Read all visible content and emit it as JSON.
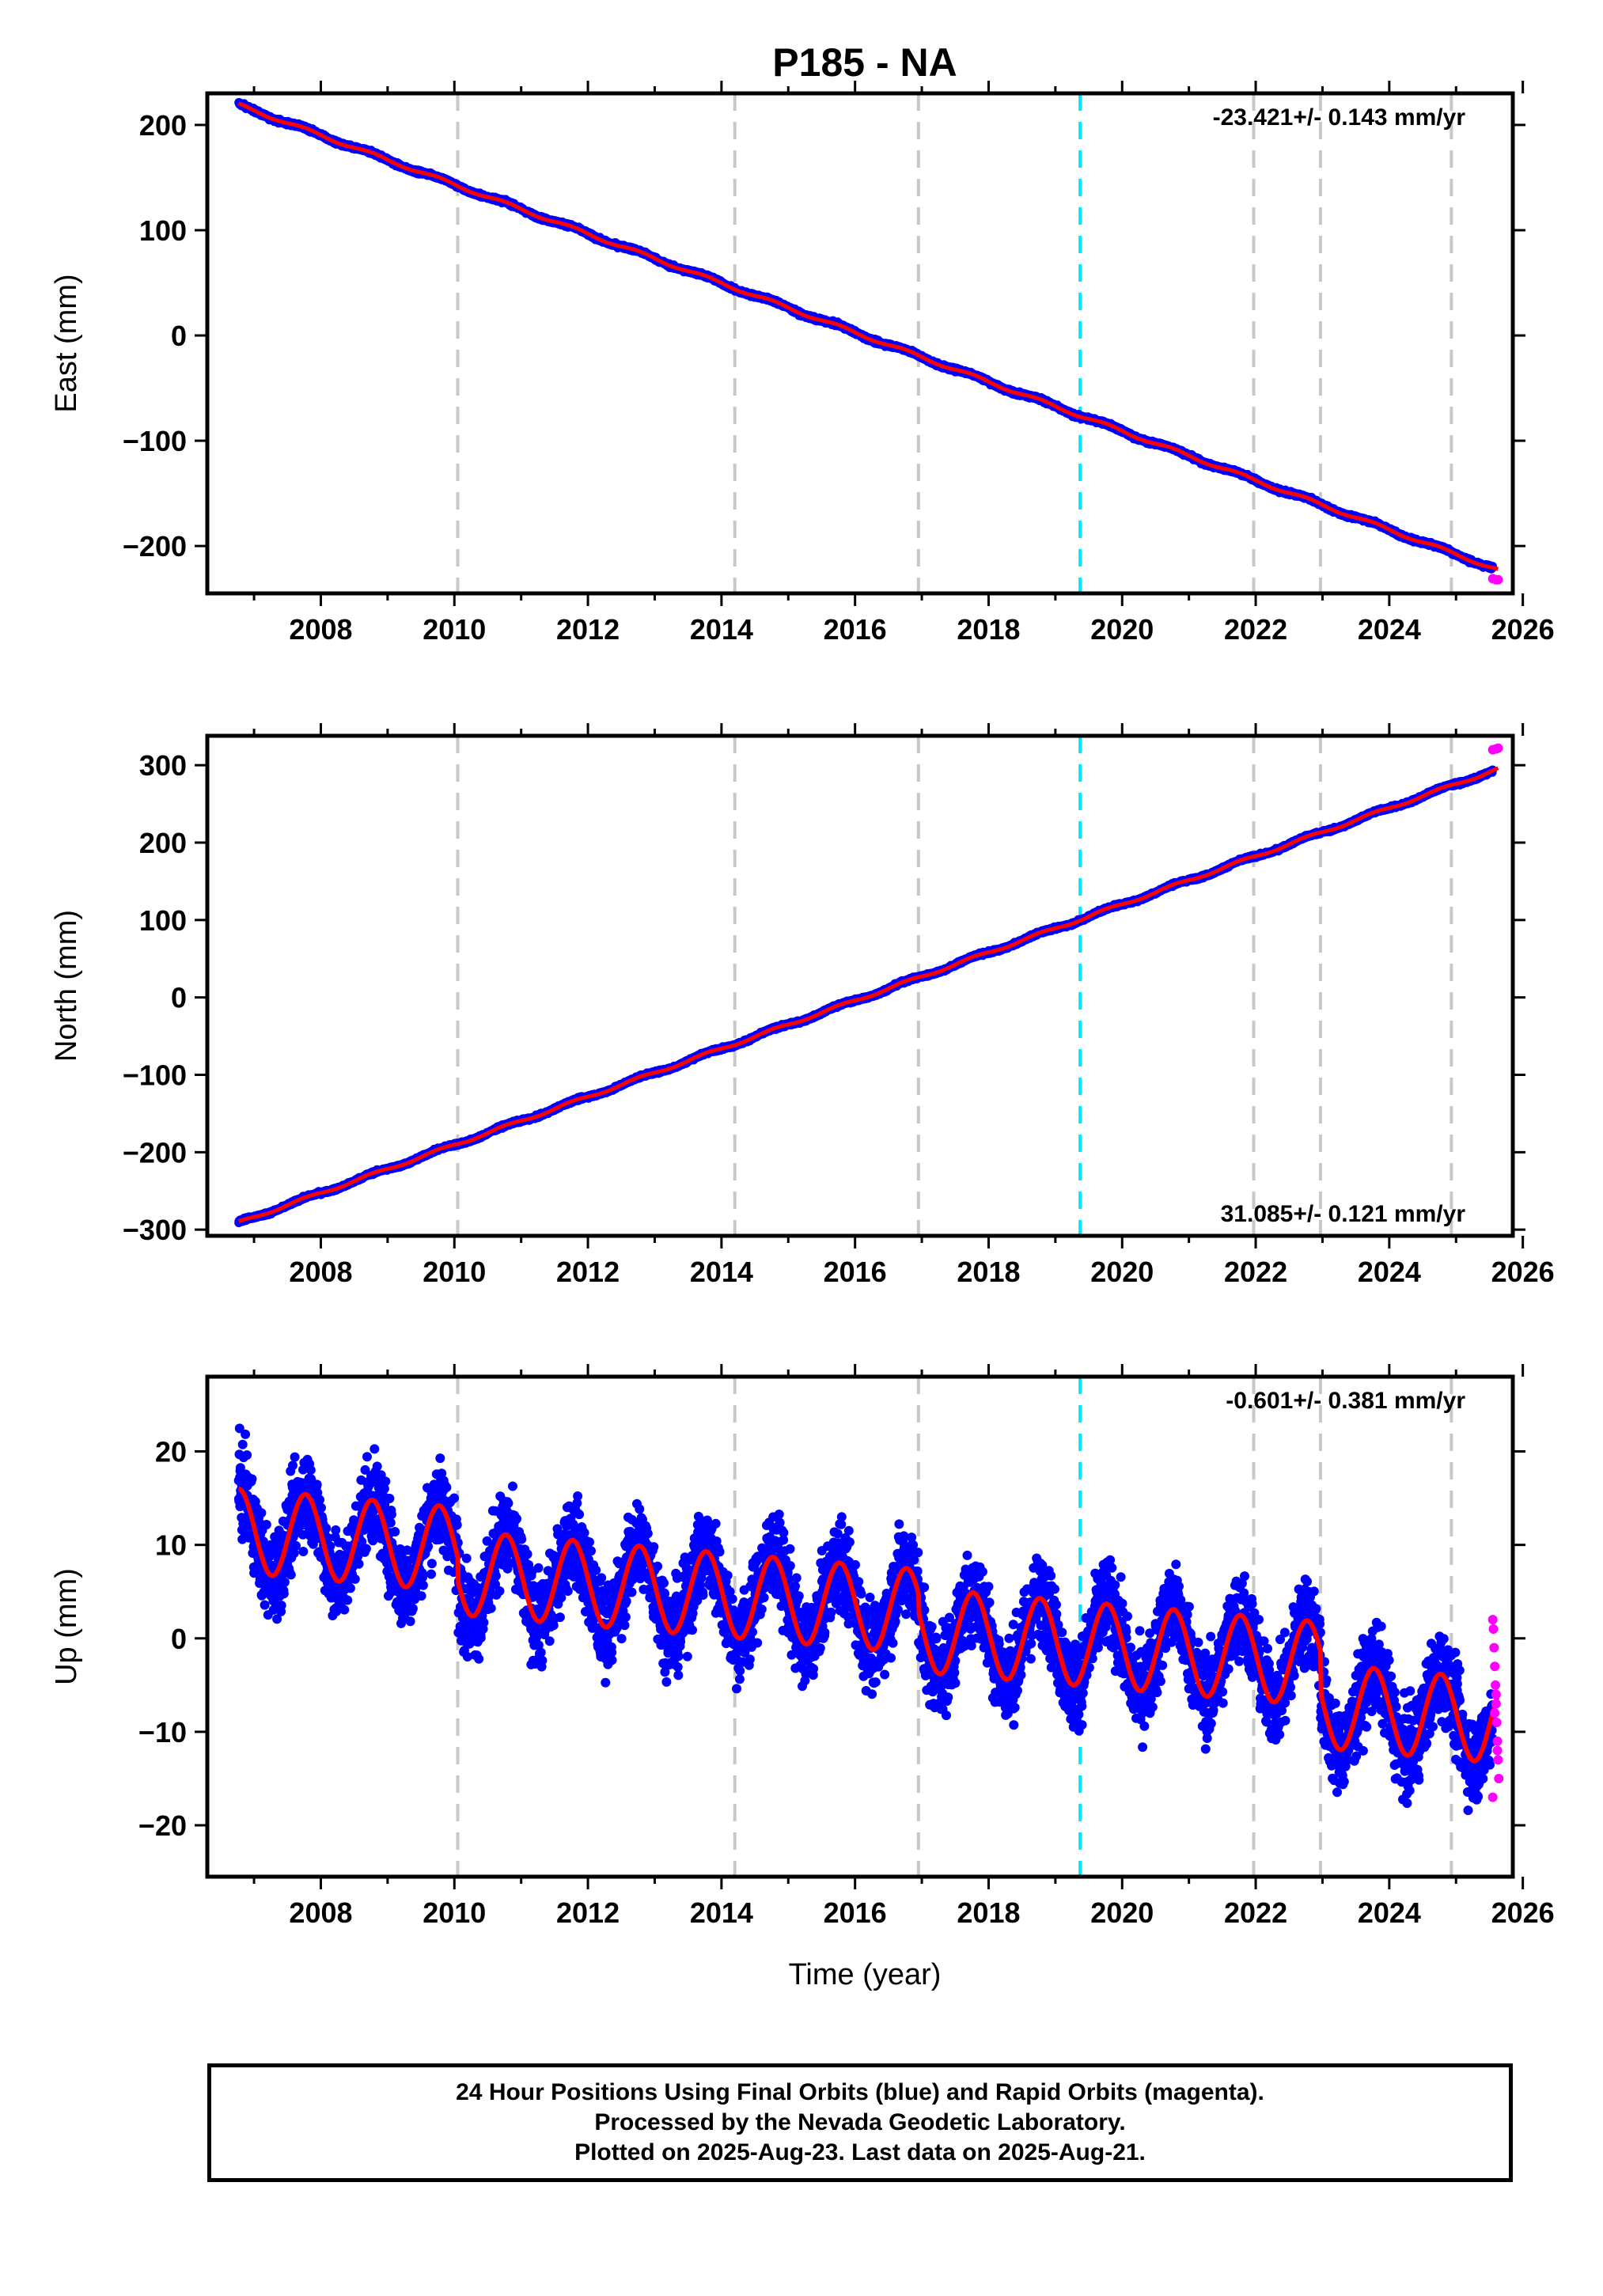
{
  "figure": {
    "title": "P185 - NA",
    "xlabel": "Time (year)",
    "caption": [
      "24 Hour Positions Using Final Orbits (blue) and Rapid Orbits (magenta).",
      "Processed by the Nevada Geodetic Laboratory.",
      "Plotted on 2025-Aug-23. Last data on 2025-Aug-21."
    ]
  },
  "colors": {
    "final_orbits": "#0000ff",
    "rapid_orbits": "#ff00ff",
    "model_fit": "#ff0000",
    "equipment_change": "#00e8ff",
    "gray_event": "#c8c8c8",
    "frame": "#000000"
  },
  "chart_data": [
    {
      "type": "scatter",
      "panel": "east",
      "ylabel": "East (mm)",
      "rate_label": "-23.421+/- 0.143 mm/yr",
      "rate_position": "top-right",
      "xlim": [
        2006.3,
        2025.85
      ],
      "ylim": [
        -245,
        230
      ],
      "xticks": [
        2008,
        2010,
        2012,
        2014,
        2016,
        2018,
        2020,
        2022,
        2024,
        2026
      ],
      "xtick_labels": [
        "2008",
        "2010",
        "2012",
        "2014",
        "2016",
        "2018",
        "2020",
        "2022",
        "2024",
        "2026"
      ],
      "yticks": [
        -200,
        -100,
        0,
        100,
        200
      ],
      "ytick_labels": [
        "−200",
        "−100",
        "0",
        "100",
        "200"
      ],
      "gray_event_lines": [
        2010.05,
        2014.2,
        2016.95,
        2021.97,
        2022.97,
        2024.93
      ],
      "cyan_event_lines": [
        2019.37
      ],
      "model": {
        "t0": 2006.77,
        "y0": 219,
        "rate": -23.421,
        "annual_amp": 1.5,
        "noise": 1.2
      },
      "rapid_points": {
        "x": [
          2025.55,
          2025.6,
          2025.63
        ],
        "y": [
          -231,
          -232,
          -232
        ]
      },
      "series": [
        {
          "name": "Final Orbits (blue)",
          "x": [
            2006.77,
            2008.0,
            2010.0,
            2012.0,
            2014.0,
            2016.0,
            2018.0,
            2020.0,
            2022.0,
            2024.0,
            2025.6
          ],
          "values": [
            219,
            188,
            146,
            100,
            53,
            6,
            -40,
            -88,
            -134,
            -180,
            -231
          ]
        }
      ]
    },
    {
      "type": "scatter",
      "panel": "north",
      "ylabel": "North (mm)",
      "rate_label": "31.085+/- 0.121 mm/yr",
      "rate_position": "bottom-right",
      "xlim": [
        2006.3,
        2025.85
      ],
      "ylim": [
        -308,
        338
      ],
      "xticks": [
        2008,
        2010,
        2012,
        2014,
        2016,
        2018,
        2020,
        2022,
        2024,
        2026
      ],
      "xtick_labels": [
        "2008",
        "2010",
        "2012",
        "2014",
        "2016",
        "2018",
        "2020",
        "2022",
        "2024",
        "2026"
      ],
      "yticks": [
        -300,
        -200,
        -100,
        0,
        100,
        200,
        300
      ],
      "ytick_labels": [
        "−300",
        "−200",
        "−100",
        "0",
        "100",
        "200",
        "300"
      ],
      "gray_event_lines": [
        2010.05,
        2014.2,
        2016.95,
        2021.97,
        2022.97,
        2024.93
      ],
      "cyan_event_lines": [
        2019.37
      ],
      "model": {
        "t0": 2006.77,
        "y0": -291,
        "rate": 31.085,
        "annual_amp": 1.8,
        "noise": 1.3
      },
      "rapid_points": {
        "x": [
          2025.55,
          2025.6,
          2025.63
        ],
        "y": [
          320,
          321,
          322
        ]
      },
      "series": [
        {
          "name": "Final Orbits (blue)",
          "x": [
            2006.77,
            2008.0,
            2010.0,
            2012.0,
            2014.0,
            2016.0,
            2018.0,
            2020.0,
            2022.0,
            2024.0,
            2025.6
          ],
          "values": [
            -291,
            -255,
            -196,
            -132,
            -75,
            -11,
            50,
            117,
            188,
            250,
            320
          ]
        }
      ]
    },
    {
      "type": "scatter",
      "panel": "up",
      "ylabel": "Up (mm)",
      "rate_label": "-0.601+/- 0.381 mm/yr",
      "rate_position": "top-right",
      "xlim": [
        2006.3,
        2025.85
      ],
      "ylim": [
        -25.5,
        28
      ],
      "xticks": [
        2008,
        2010,
        2012,
        2014,
        2016,
        2018,
        2020,
        2022,
        2024,
        2026
      ],
      "xtick_labels": [
        "2008",
        "2010",
        "2012",
        "2014",
        "2016",
        "2018",
        "2020",
        "2022",
        "2024",
        "2026"
      ],
      "yticks": [
        -20,
        -10,
        0,
        10,
        20
      ],
      "ytick_labels": [
        "−20",
        "−10",
        "0",
        "10",
        "20"
      ],
      "gray_event_lines": [
        2010.05,
        2014.2,
        2016.95,
        2021.97,
        2022.97,
        2024.93
      ],
      "cyan_event_lines": [
        2019.37
      ],
      "model": {
        "t0": 2006.77,
        "y0": 11.5,
        "rate": -0.601,
        "annual_amp": 4.5,
        "noise": 3.2,
        "offsets": [
          {
            "t": 2010.05,
            "dy": -2.5
          },
          {
            "t": 2016.95,
            "dy": -2.0
          },
          {
            "t": 2022.97,
            "dy": -4.5
          }
        ]
      },
      "rapid_points": {
        "x": [
          2025.55,
          2025.56,
          2025.57,
          2025.58,
          2025.59,
          2025.6,
          2025.61,
          2025.62,
          2025.63,
          2025.64,
          2025.55,
          2025.58,
          2025.6,
          2025.62
        ],
        "y": [
          2,
          1,
          -1,
          -3,
          -5,
          -7,
          -9,
          -11,
          -13,
          -15,
          -17,
          -8,
          -6,
          -12
        ]
      },
      "series": [
        {
          "name": "Final Orbits (blue)",
          "x": [
            2006.77,
            2007.7,
            2008.7,
            2010.7,
            2012.7,
            2014.7,
            2016.7,
            2018.7,
            2020.7,
            2022.7,
            2024.7
          ],
          "values": [
            16,
            16,
            15,
            10,
            9,
            8,
            6,
            2,
            -2,
            -2,
            -9
          ]
        }
      ]
    }
  ]
}
